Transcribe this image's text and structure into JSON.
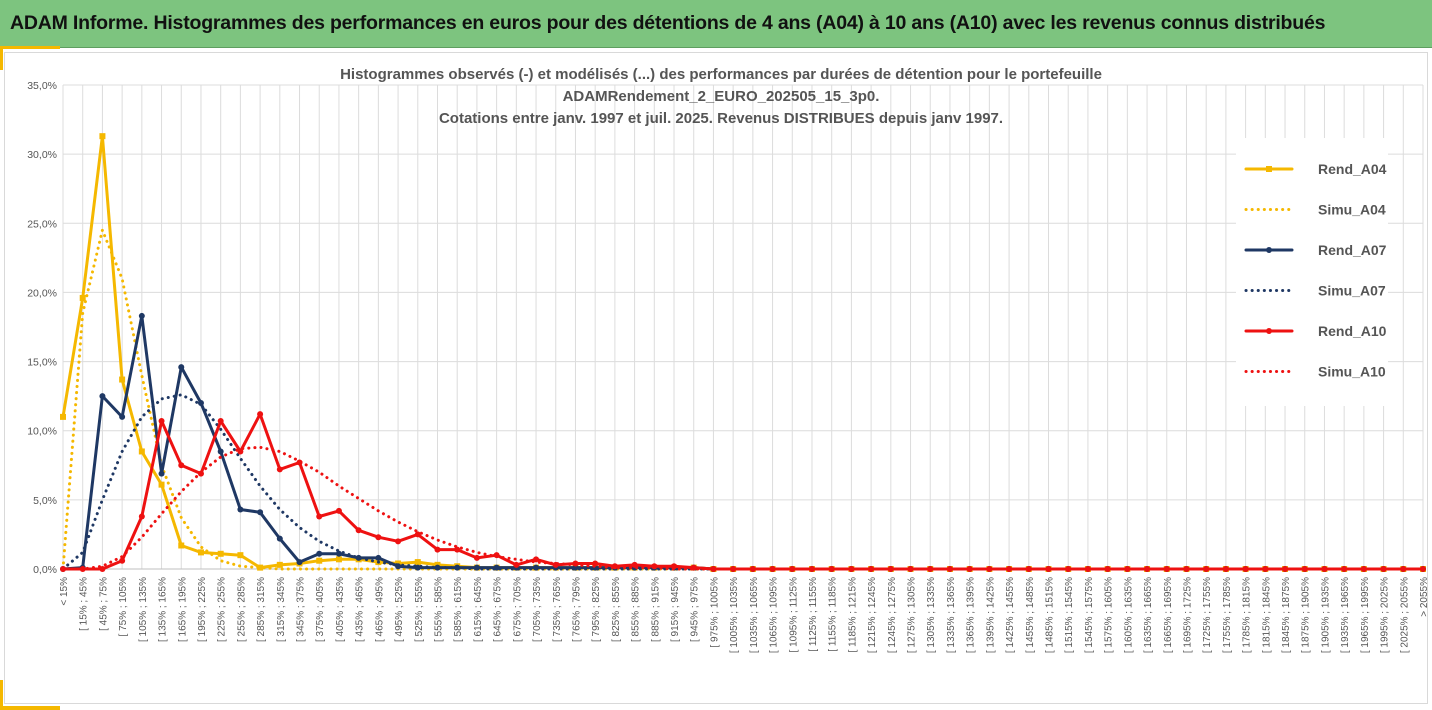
{
  "banner": {
    "title": "ADAM Informe. Histogrammes des performances en euros pour des détentions de 4 ans (A04) à 10 ans (A10) avec les revenus connus distribués"
  },
  "colors": {
    "banner_bg": "#7dc47f",
    "accent_yellow": "#f5b800",
    "A04": "#f5b800",
    "A07": "#1f3864",
    "A10": "#ee1111",
    "grid": "#dcdcdc"
  },
  "chart_data": {
    "type": "line",
    "title": [
      "Histogrammes observés (-) et modélisés (...) des performances par durées de détention pour le portefeuille",
      "ADAMRendement_2_EURO_202505_15_3p0.",
      "Cotations entre janv. 1997 et juil. 2025. Revenus DISTRIBUES depuis janv 1997."
    ],
    "xlabel": "",
    "ylabel": "",
    "ylim": [
      0,
      35
    ],
    "y_ticks": [
      "0,0%",
      "5,0%",
      "10,0%",
      "15,0%",
      "20,0%",
      "25,0%",
      "30,0%",
      "35,0%"
    ],
    "grid": true,
    "legend_position": "right",
    "categories": [
      "< 15%",
      "[ 15% ; 45%",
      "[ 45% ; 75%",
      "[ 75% ; 105%",
      "[ 105% ; 135%",
      "[ 135% ; 165%",
      "[ 165% ; 195%",
      "[ 195% ; 225%",
      "[ 225% ; 255%",
      "[ 255% ; 285%",
      "[ 285% ; 315%",
      "[ 315% ; 345%",
      "[ 345% ; 375%",
      "[ 375% ; 405%",
      "[ 405% ; 435%",
      "[ 435% ; 465%",
      "[ 465% ; 495%",
      "[ 495% ; 525%",
      "[ 525% ; 555%",
      "[ 555% ; 585%",
      "[ 585% ; 615%",
      "[ 615% ; 645%",
      "[ 645% ; 675%",
      "[ 675% ; 705%",
      "[ 705% ; 735%",
      "[ 735% ; 765%",
      "[ 765% ; 795%",
      "[ 795% ; 825%",
      "[ 825% ; 855%",
      "[ 855% ; 885%",
      "[ 885% ; 915%",
      "[ 915% ; 945%",
      "[ 945% ; 975%",
      "[ 975% ; 1005%",
      "[ 1005% ; 1035%",
      "[ 1035% ; 1065%",
      "[ 1065% ; 1095%",
      "[ 1095% ; 1125%",
      "[ 1125% ; 1155%",
      "[ 1155% ; 1185%",
      "[ 1185% ; 1215%",
      "[ 1215% ; 1245%",
      "[ 1245% ; 1275%",
      "[ 1275% ; 1305%",
      "[ 1305% ; 1335%",
      "[ 1335% ; 1365%",
      "[ 1365% ; 1395%",
      "[ 1395% ; 1425%",
      "[ 1425% ; 1455%",
      "[ 1455% ; 1485%",
      "[ 1485% ; 1515%",
      "[ 1515% ; 1545%",
      "[ 1545% ; 1575%",
      "[ 1575% ; 1605%",
      "[ 1605% ; 1635%",
      "[ 1635% ; 1665%",
      "[ 1665% ; 1695%",
      "[ 1695% ; 1725%",
      "[ 1725% ; 1755%",
      "[ 1755% ; 1785%",
      "[ 1785% ; 1815%",
      "[ 1815% ; 1845%",
      "[ 1845% ; 1875%",
      "[ 1875% ; 1905%",
      "[ 1905% ; 1935%",
      "[ 1935% ; 1965%",
      "[ 1965% ; 1995%",
      "[ 1995% ; 2025%",
      "[ 2025% ; 2055%",
      "> 2055%"
    ],
    "series": [
      {
        "name": "Rend_A04",
        "style": "solid",
        "marker": "square",
        "color": "#f5b800",
        "values": [
          11,
          19.6,
          31.3,
          13.7,
          8.5,
          6.1,
          1.7,
          1.2,
          1.1,
          1,
          0.1,
          0.3,
          0.4,
          0.6,
          0.7,
          0.7,
          0.5,
          0.4,
          0.5,
          0.3,
          0.2,
          0.1,
          0.1,
          0.1,
          0.1,
          0.1,
          0.1,
          0.1,
          0.1,
          0.1,
          0.1,
          0.1,
          0.1,
          0,
          0,
          0,
          0,
          0,
          0,
          0,
          0,
          0,
          0,
          0,
          0,
          0,
          0,
          0,
          0,
          0,
          0,
          0,
          0,
          0,
          0,
          0,
          0,
          0,
          0,
          0,
          0,
          0,
          0,
          0,
          0,
          0,
          0,
          0,
          0,
          0
        ]
      },
      {
        "name": "Simu_A04",
        "style": "dotted",
        "marker": "none",
        "color": "#f5b800",
        "values": [
          0,
          18.5,
          24.5,
          21,
          14,
          7.5,
          3.7,
          1.6,
          0.6,
          0.2,
          0.1,
          0,
          0,
          0,
          0,
          0,
          0,
          0,
          0,
          0,
          0,
          0,
          0,
          0,
          0,
          0,
          0,
          0,
          0,
          0,
          0,
          0,
          0,
          0,
          0,
          0,
          0,
          0,
          0,
          0,
          0,
          0,
          0,
          0,
          0,
          0,
          0,
          0,
          0,
          0,
          0,
          0,
          0,
          0,
          0,
          0,
          0,
          0,
          0,
          0,
          0,
          0,
          0,
          0,
          0,
          0,
          0,
          0,
          0,
          0
        ]
      },
      {
        "name": "Rend_A07",
        "style": "solid",
        "marker": "circle",
        "color": "#1f3864",
        "values": [
          0,
          0.1,
          12.5,
          11,
          18.3,
          6.9,
          14.6,
          12,
          8.5,
          4.3,
          4.1,
          2.2,
          0.5,
          1.1,
          1.1,
          0.8,
          0.8,
          0.2,
          0.1,
          0.1,
          0.1,
          0.1,
          0.1,
          0.1,
          0.1,
          0.1,
          0.1,
          0.1,
          0.1,
          0.1,
          0.1,
          0.1,
          0.1,
          0,
          0,
          0,
          0,
          0,
          0,
          0,
          0,
          0,
          0,
          0,
          0,
          0,
          0,
          0,
          0,
          0,
          0,
          0,
          0,
          0,
          0,
          0,
          0,
          0,
          0,
          0,
          0,
          0,
          0,
          0,
          0,
          0,
          0,
          0,
          0,
          0
        ]
      },
      {
        "name": "Simu_A07",
        "style": "dotted",
        "marker": "none",
        "color": "#1f3864",
        "values": [
          0,
          1.2,
          5,
          8.5,
          11,
          12.3,
          12.6,
          11.9,
          10.1,
          8,
          6,
          4.3,
          3,
          2,
          1.3,
          0.8,
          0.5,
          0.3,
          0.2,
          0.1,
          0.1,
          0,
          0,
          0,
          0,
          0,
          0,
          0,
          0,
          0,
          0,
          0,
          0,
          0,
          0,
          0,
          0,
          0,
          0,
          0,
          0,
          0,
          0,
          0,
          0,
          0,
          0,
          0,
          0,
          0,
          0,
          0,
          0,
          0,
          0,
          0,
          0,
          0,
          0,
          0,
          0,
          0,
          0,
          0,
          0,
          0,
          0,
          0,
          0,
          0
        ]
      },
      {
        "name": "Rend_A10",
        "style": "solid",
        "marker": "circle",
        "color": "#ee1111",
        "values": [
          0,
          0,
          0,
          0.6,
          3.8,
          10.7,
          7.5,
          6.9,
          10.7,
          8.5,
          11.2,
          7.2,
          7.7,
          3.8,
          4.2,
          2.8,
          2.3,
          2,
          2.5,
          1.4,
          1.4,
          0.8,
          1,
          0.3,
          0.7,
          0.3,
          0.4,
          0.4,
          0.2,
          0.3,
          0.2,
          0.2,
          0.1,
          0,
          0,
          0,
          0,
          0,
          0,
          0,
          0,
          0,
          0,
          0,
          0,
          0,
          0,
          0,
          0,
          0,
          0,
          0,
          0,
          0,
          0,
          0,
          0,
          0,
          0,
          0,
          0,
          0,
          0,
          0,
          0,
          0,
          0,
          0,
          0,
          0
        ]
      },
      {
        "name": "Simu_A10",
        "style": "dotted",
        "marker": "none",
        "color": "#ee1111",
        "values": [
          0,
          0,
          0.2,
          0.9,
          2.3,
          4,
          5.6,
          7,
          8.1,
          8.7,
          8.8,
          8.5,
          7.8,
          7,
          6,
          5.1,
          4.2,
          3.4,
          2.7,
          2.1,
          1.6,
          1.2,
          0.9,
          0.7,
          0.5,
          0.4,
          0.3,
          0.2,
          0.1,
          0.1,
          0.1,
          0,
          0,
          0,
          0,
          0,
          0,
          0,
          0,
          0,
          0,
          0,
          0,
          0,
          0,
          0,
          0,
          0,
          0,
          0,
          0,
          0,
          0,
          0,
          0,
          0,
          0,
          0,
          0,
          0,
          0,
          0,
          0,
          0,
          0,
          0,
          0,
          0,
          0,
          0
        ]
      }
    ]
  }
}
